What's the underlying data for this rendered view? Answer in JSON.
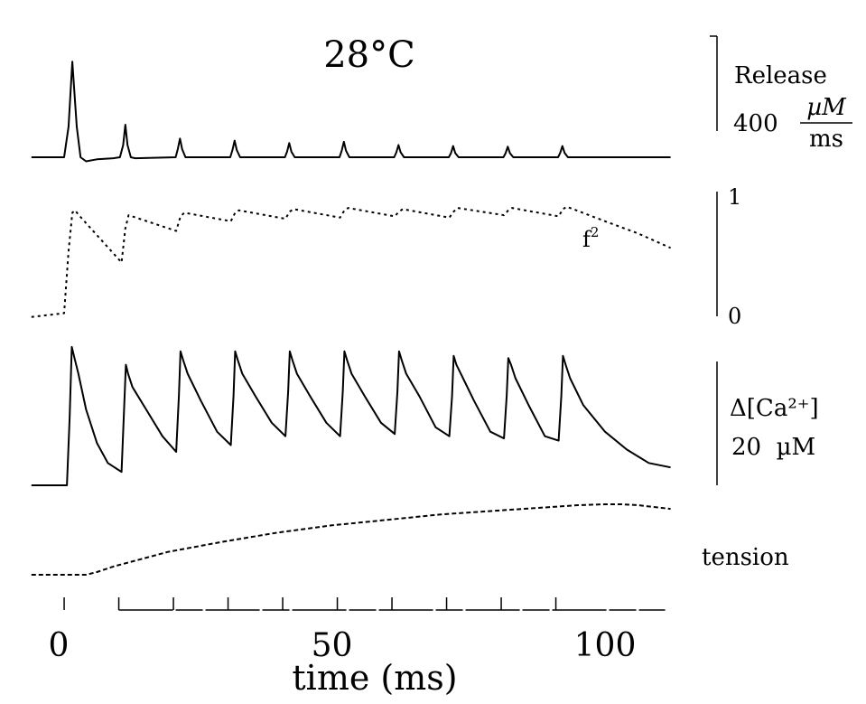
{
  "chart_data": {
    "type": "line",
    "title": "28°C",
    "xlabel": "time (ms)",
    "xlim": [
      -5,
      112
    ],
    "x_ticks": [
      0,
      50,
      100
    ],
    "x_tick_labels": [
      "0",
      "50",
      "100"
    ],
    "stimulus_times_ms": [
      2,
      12,
      22,
      32,
      42,
      52,
      62,
      72,
      82,
      92
    ],
    "panels": [
      {
        "id": "release",
        "label_lines": [
          "Release"
        ],
        "scale_value": "400",
        "scale_unit_numerator": "µM",
        "scale_unit_denominator": "ms",
        "ylim": [
          -40,
          480
        ],
        "series": {
          "x": [
            -5,
            1.0,
            1.8,
            2.5,
            3.3,
            4.0,
            5,
            7,
            10,
            11.2,
            11.8,
            12.2,
            12.6,
            13.2,
            14,
            21.4,
            21.8,
            22.2,
            22.6,
            23.2,
            31.4,
            31.8,
            32.2,
            32.6,
            33.2,
            41.4,
            41.8,
            42.2,
            42.6,
            43.2,
            51.4,
            51.8,
            52.2,
            52.6,
            53.2,
            61.4,
            61.8,
            62.2,
            62.6,
            63.2,
            71.4,
            71.8,
            72.2,
            72.6,
            73.2,
            81.4,
            81.8,
            82.2,
            82.6,
            83.2,
            91.4,
            91.8,
            92.2,
            92.6,
            93.2,
            100,
            112
          ],
          "y": [
            0,
            0,
            150,
            470,
            150,
            0,
            -20,
            -10,
            -5,
            0,
            60,
            160,
            60,
            0,
            -5,
            0,
            40,
            92,
            40,
            0,
            0,
            35,
            82,
            35,
            0,
            0,
            27,
            70,
            27,
            0,
            0,
            32,
            76,
            32,
            0,
            0,
            24,
            60,
            24,
            0,
            0,
            20,
            55,
            20,
            0,
            0,
            20,
            52,
            20,
            0,
            0,
            22,
            55,
            22,
            0,
            0,
            0
          ]
        }
      },
      {
        "id": "f2",
        "series_label": "f",
        "series_label_sup": "2",
        "ylim": [
          0,
          1
        ],
        "y_ticks": [
          0,
          1
        ],
        "y_tick_labels": [
          "0",
          "1"
        ],
        "series": {
          "x": [
            -5,
            1.0,
            1.8,
            2.5,
            3.0,
            3.5,
            11.5,
            12.2,
            12.8,
            21.5,
            22.3,
            23,
            31.5,
            32.3,
            33,
            41.5,
            42.3,
            43,
            51.5,
            52.3,
            53,
            61.5,
            62.3,
            63,
            71.5,
            72.3,
            73,
            81.5,
            82.3,
            83,
            91.5,
            92.3,
            93,
            100,
            106,
            112
          ],
          "y": [
            0.01,
            0.04,
            0.55,
            0.87,
            0.89,
            0.86,
            0.46,
            0.74,
            0.85,
            0.72,
            0.84,
            0.87,
            0.8,
            0.87,
            0.89,
            0.82,
            0.88,
            0.9,
            0.83,
            0.89,
            0.91,
            0.84,
            0.88,
            0.9,
            0.83,
            0.88,
            0.91,
            0.85,
            0.89,
            0.91,
            0.84,
            0.9,
            0.92,
            0.8,
            0.7,
            0.58
          ]
        }
      },
      {
        "id": "calcium",
        "label_lines": [
          "Δ[Ca²⁺]",
          "20  µM"
        ],
        "ylim": [
          0,
          33
        ],
        "series": {
          "x": [
            -5,
            1.5,
            2.0,
            2.4,
            2.8,
            3.6,
            5,
            7,
            9,
            11.5,
            12.0,
            12.3,
            12.7,
            13.5,
            16,
            19,
            21.5,
            22.0,
            22.3,
            22.8,
            23.6,
            26,
            29,
            31.5,
            32.0,
            32.3,
            32.8,
            33.6,
            36,
            39,
            41.5,
            42.0,
            42.3,
            42.8,
            43.6,
            46,
            49,
            51.5,
            52.0,
            52.3,
            52.8,
            53.6,
            56,
            59,
            61.5,
            62.0,
            62.3,
            62.8,
            63.6,
            66,
            69,
            71.5,
            72.0,
            72.3,
            72.8,
            73.6,
            76,
            79,
            81.5,
            82.0,
            82.3,
            82.8,
            83.6,
            86,
            89,
            91.5,
            92.0,
            92.3,
            92.8,
            93.6,
            96,
            100,
            104,
            108,
            112
          ],
          "y": [
            0,
            0,
            15,
            31,
            29,
            25,
            17,
            9.5,
            5,
            3.0,
            18,
            27,
            25,
            22,
            17,
            11,
            7.5,
            20,
            30,
            28,
            25,
            19,
            12,
            9,
            20,
            30,
            28,
            25,
            20,
            14,
            11,
            21,
            30,
            28,
            25,
            20,
            14,
            11,
            21,
            30,
            28,
            25,
            20,
            14,
            11.5,
            21,
            30,
            28,
            25,
            20,
            13,
            11,
            20,
            29,
            27,
            25,
            19,
            12,
            10.5,
            20,
            28.5,
            27,
            24,
            18,
            11,
            10,
            20,
            29,
            27,
            24,
            18,
            12,
            8,
            5,
            4
          ]
        }
      },
      {
        "id": "tension",
        "label_lines": [
          "tension"
        ],
        "ylim": [
          0,
          80
        ],
        "series": {
          "x": [
            -5,
            0,
            5,
            7,
            10,
            15,
            20,
            30,
            40,
            50,
            60,
            70,
            80,
            90,
            95,
            100,
            103,
            106,
            112
          ],
          "y": [
            0,
            0,
            0,
            3,
            9,
            17,
            25,
            36,
            46,
            54,
            60,
            66,
            70,
            74,
            76,
            77,
            77,
            76,
            72
          ]
        }
      }
    ]
  }
}
